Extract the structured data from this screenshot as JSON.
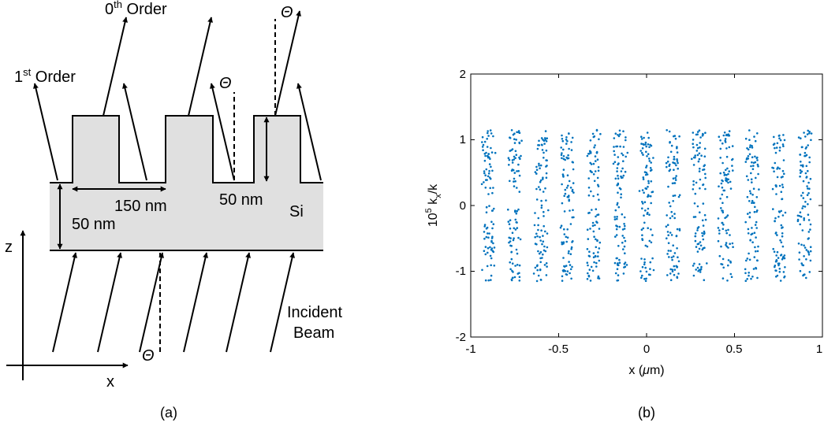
{
  "panel_a": {
    "caption": "(a)",
    "order0": {
      "base": "0",
      "sup": "th",
      "rest": " Order"
    },
    "order1": {
      "base": "1",
      "sup": "st",
      "rest": " Order"
    },
    "theta": "Θ",
    "dim_150": "150 nm",
    "dim_50_height": "50 nm",
    "dim_50_film": "50 nm",
    "material": "Si",
    "incident_line1": "Incident",
    "incident_line2": "Beam",
    "axis_z": "z",
    "axis_x": "x",
    "fill_color": "#e0e0e0"
  },
  "panel_b": {
    "caption": "(b)",
    "x_tick_labels": [
      "-1",
      "-0.5",
      "0",
      "0.5",
      "1"
    ],
    "y_tick_labels": [
      "-2",
      "-1",
      "0",
      "1",
      "2"
    ],
    "xlabel_pre": "x (",
    "xlabel_mu": "μ",
    "xlabel_post": "m)",
    "ylabel_base": "10",
    "ylabel_sup": "5",
    "ylabel_k": " k",
    "ylabel_sub": "x",
    "ylabel_tail": "/k",
    "marker_color": "#0072BD"
  },
  "chart_data": {
    "type": "scatter",
    "xlabel": "x (μm)",
    "ylabel": "10^5 k_x/k",
    "xlim": [
      -1,
      1
    ],
    "ylim": [
      -2,
      2
    ],
    "x_ticks": [
      -1,
      -0.5,
      0,
      0.5,
      1
    ],
    "y_ticks": [
      -2,
      -1,
      0,
      1,
      2
    ],
    "grid": false,
    "description_points": "points arranged in 13 vertical bands",
    "band_centers_x": [
      -0.9,
      -0.75,
      -0.6,
      -0.45,
      -0.3,
      -0.15,
      0,
      0.15,
      0.3,
      0.45,
      0.6,
      0.75,
      0.9
    ],
    "band_half_width_x": 0.035,
    "y_range": [
      -1.15,
      1.15
    ],
    "points_per_band": 95
  }
}
